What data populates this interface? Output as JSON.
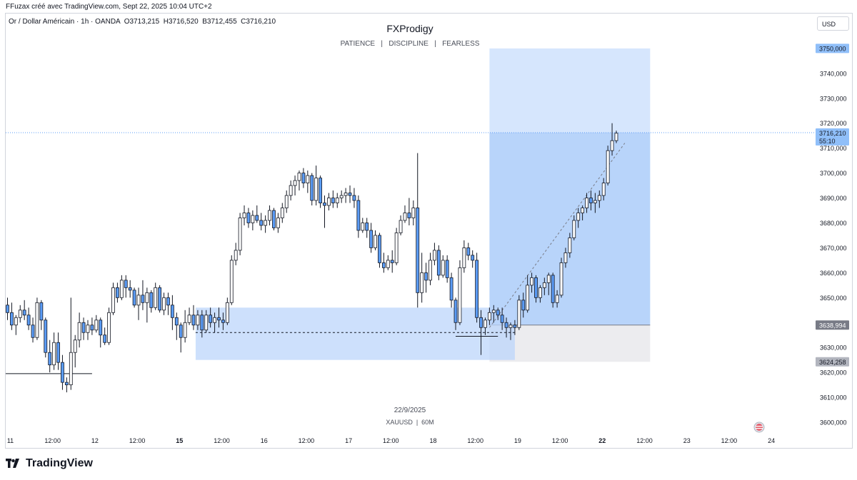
{
  "header": {
    "credit": "FFuzax créé avec TradingView.com, Sept 22, 2025 10:04 UTC+2",
    "symbol_info": "Or / Dollar Américain · 1h · OANDA",
    "ohlc": "O3713,215  H3716,520  B3712,455  C3716,210",
    "currency": "USD"
  },
  "footer": {
    "brand": "TradingView",
    "logo_icon": "tradingview-logo-icon"
  },
  "chart_data": {
    "type": "candlestick",
    "title": "FXProdigy",
    "subtitle": "PATIENCE   |   DISCIPLINE   |   FEARLESS",
    "date_caption": "22/9/2025",
    "instrument_caption": "XAUUSD  |  60M",
    "ylim": [
      3596,
      3764
    ],
    "y_ticks": [
      "3600,000",
      "3610,000",
      "3620,000",
      "3630,000",
      "3640,000",
      "3650,000",
      "3660,000",
      "3670,000",
      "3680,000",
      "3690,000",
      "3700,000",
      "3710,000",
      "3720,000",
      "3730,000",
      "3740,000"
    ],
    "x_ticks": [
      {
        "label": "11",
        "i": 0,
        "bold": false
      },
      {
        "label": "12:00",
        "i": 10,
        "bold": false
      },
      {
        "label": "12",
        "i": 20,
        "bold": false
      },
      {
        "label": "12:00",
        "i": 30,
        "bold": false
      },
      {
        "label": "15",
        "i": 40,
        "bold": true
      },
      {
        "label": "12:00",
        "i": 50,
        "bold": false
      },
      {
        "label": "16",
        "i": 60,
        "bold": false
      },
      {
        "label": "12:00",
        "i": 70,
        "bold": false
      },
      {
        "label": "17",
        "i": 80,
        "bold": false
      },
      {
        "label": "12:00",
        "i": 90,
        "bold": false
      },
      {
        "label": "18",
        "i": 100,
        "bold": false
      },
      {
        "label": "12:00",
        "i": 110,
        "bold": false
      },
      {
        "label": "19",
        "i": 120,
        "bold": false
      },
      {
        "label": "12:00",
        "i": 130,
        "bold": false
      },
      {
        "label": "22",
        "i": 140,
        "bold": true
      },
      {
        "label": "12:00",
        "i": 150,
        "bold": false
      },
      {
        "label": "23",
        "i": 160,
        "bold": false
      },
      {
        "label": "12:00",
        "i": 170,
        "bold": false
      },
      {
        "label": "24",
        "i": 180,
        "bold": false
      }
    ],
    "price_labels": [
      {
        "text": "3750,000",
        "value": 3750,
        "bg": "#90bff9",
        "color": "#131722"
      },
      {
        "text": "3716,210",
        "text2": "55:10",
        "value": 3716.21,
        "bg": "#90bff9",
        "color": "#131722"
      },
      {
        "text": "3638,994",
        "value": 3638.994,
        "bg": "#787b86",
        "color": "#ffffff"
      },
      {
        "text": "3624,258",
        "value": 3624.258,
        "bg": "#b2b5be",
        "color": "#131722"
      }
    ],
    "current_price": 3716.21,
    "demand_zone": {
      "from_i": 44.5,
      "to_i": 120,
      "low": 3625,
      "high": 3646
    },
    "demand_midline": 3636,
    "long_position": {
      "from_i": 114,
      "to_i": 152,
      "entry": 3638.994,
      "target": 3750,
      "stop": 3624.258
    },
    "support_line": {
      "from_i": 0,
      "to_i": 20,
      "value": 3619.5
    },
    "small_line": {
      "from_i": 106,
      "to_i": 116,
      "value": 3634.5
    },
    "trend_line": {
      "from": [
        114,
        3638
      ],
      "to": [
        146,
        3712
      ]
    },
    "candle_colors": {
      "up": "#ffffff",
      "down": "#5b9cf6",
      "wick": "#131722"
    },
    "candles": [
      [
        3647,
        3650,
        3641,
        3644
      ],
      [
        3644,
        3648,
        3637,
        3639
      ],
      [
        3639,
        3643,
        3635,
        3642
      ],
      [
        3642,
        3647,
        3640,
        3645
      ],
      [
        3645,
        3649,
        3641,
        3643
      ],
      [
        3643,
        3646,
        3637,
        3639
      ],
      [
        3639,
        3642,
        3632,
        3634
      ],
      [
        3634,
        3650,
        3633,
        3648
      ],
      [
        3648,
        3649,
        3637,
        3641
      ],
      [
        3641,
        3642,
        3626,
        3628
      ],
      [
        3628,
        3633,
        3620,
        3623
      ],
      [
        3623,
        3636,
        3621,
        3632
      ],
      [
        3632,
        3636,
        3621,
        3624
      ],
      [
        3624,
        3627,
        3613,
        3616
      ],
      [
        3616,
        3618,
        3612,
        3615
      ],
      [
        3615,
        3650,
        3613,
        3628
      ],
      [
        3628,
        3635,
        3622,
        3633
      ],
      [
        3633,
        3644,
        3630,
        3640
      ],
      [
        3640,
        3642,
        3633,
        3636
      ],
      [
        3636,
        3641,
        3633,
        3639
      ],
      [
        3639,
        3642,
        3635,
        3637
      ],
      [
        3637,
        3643,
        3636,
        3641
      ],
      [
        3641,
        3642,
        3630,
        3635
      ],
      [
        3635,
        3638,
        3631,
        3632
      ],
      [
        3632,
        3646,
        3631,
        3644
      ],
      [
        3644,
        3656,
        3643,
        3654
      ],
      [
        3654,
        3656,
        3648,
        3650
      ],
      [
        3650,
        3659,
        3649,
        3657
      ],
      [
        3657,
        3659,
        3650,
        3654
      ],
      [
        3654,
        3657,
        3650,
        3653
      ],
      [
        3653,
        3654,
        3646,
        3647
      ],
      [
        3647,
        3654,
        3641,
        3651
      ],
      [
        3651,
        3657,
        3645,
        3648
      ],
      [
        3648,
        3654,
        3640,
        3652
      ],
      [
        3652,
        3653,
        3644,
        3646
      ],
      [
        3646,
        3656,
        3645,
        3654
      ],
      [
        3654,
        3655,
        3644,
        3645
      ],
      [
        3645,
        3652,
        3643,
        3650
      ],
      [
        3650,
        3652,
        3643,
        3647
      ],
      [
        3647,
        3651,
        3637,
        3642
      ],
      [
        3642,
        3644,
        3633,
        3639
      ],
      [
        3639,
        3640,
        3628,
        3634
      ],
      [
        3634,
        3645,
        3632,
        3640
      ],
      [
        3640,
        3646,
        3639,
        3643
      ],
      [
        3643,
        3647,
        3637,
        3639
      ],
      [
        3639,
        3645,
        3637,
        3643
      ],
      [
        3643,
        3645,
        3634,
        3637
      ],
      [
        3637,
        3645,
        3636,
        3643
      ],
      [
        3643,
        3646,
        3638,
        3640
      ],
      [
        3640,
        3644,
        3636,
        3642
      ],
      [
        3642,
        3646,
        3638,
        3641
      ],
      [
        3641,
        3644,
        3637,
        3640
      ],
      [
        3640,
        3650,
        3639,
        3648
      ],
      [
        3648,
        3667,
        3647,
        3665
      ],
      [
        3665,
        3672,
        3663,
        3669
      ],
      [
        3669,
        3684,
        3667,
        3682
      ],
      [
        3682,
        3687,
        3679,
        3684
      ],
      [
        3684,
        3686,
        3678,
        3680
      ],
      [
        3680,
        3685,
        3677,
        3683
      ],
      [
        3683,
        3687,
        3680,
        3681
      ],
      [
        3681,
        3684,
        3677,
        3679
      ],
      [
        3679,
        3683,
        3676,
        3681
      ],
      [
        3681,
        3687,
        3679,
        3685
      ],
      [
        3685,
        3686,
        3677,
        3678
      ],
      [
        3678,
        3684,
        3676,
        3682
      ],
      [
        3682,
        3688,
        3680,
        3686
      ],
      [
        3686,
        3693,
        3684,
        3691
      ],
      [
        3691,
        3697,
        3689,
        3695
      ],
      [
        3695,
        3699,
        3691,
        3697
      ],
      [
        3697,
        3701,
        3693,
        3700
      ],
      [
        3700,
        3702,
        3694,
        3696
      ],
      [
        3696,
        3701,
        3692,
        3699
      ],
      [
        3699,
        3700,
        3687,
        3689
      ],
      [
        3689,
        3703,
        3687,
        3698
      ],
      [
        3698,
        3699,
        3686,
        3688
      ],
      [
        3688,
        3691,
        3678,
        3687
      ],
      [
        3687,
        3692,
        3685,
        3690
      ],
      [
        3690,
        3693,
        3686,
        3688
      ],
      [
        3688,
        3692,
        3686,
        3690
      ],
      [
        3690,
        3693,
        3688,
        3691
      ],
      [
        3691,
        3694,
        3688,
        3692
      ],
      [
        3692,
        3695,
        3688,
        3691
      ],
      [
        3691,
        3694,
        3686,
        3689
      ],
      [
        3689,
        3691,
        3674,
        3677
      ],
      [
        3677,
        3682,
        3676,
        3680
      ],
      [
        3680,
        3682,
        3674,
        3677
      ],
      [
        3677,
        3680,
        3668,
        3670
      ],
      [
        3670,
        3677,
        3669,
        3675
      ],
      [
        3675,
        3676,
        3662,
        3664
      ],
      [
        3664,
        3668,
        3660,
        3662
      ],
      [
        3662,
        3667,
        3661,
        3665
      ],
      [
        3665,
        3669,
        3660,
        3664
      ],
      [
        3664,
        3678,
        3663,
        3676
      ],
      [
        3676,
        3683,
        3675,
        3681
      ],
      [
        3681,
        3687,
        3680,
        3684
      ],
      [
        3684,
        3690,
        3679,
        3682
      ],
      [
        3682,
        3689,
        3679,
        3686
      ],
      [
        3686,
        3708,
        3646,
        3652
      ],
      [
        3652,
        3668,
        3648,
        3660
      ],
      [
        3660,
        3664,
        3652,
        3657
      ],
      [
        3657,
        3668,
        3655,
        3665
      ],
      [
        3665,
        3672,
        3663,
        3669
      ],
      [
        3669,
        3671,
        3657,
        3659
      ],
      [
        3659,
        3667,
        3658,
        3665
      ],
      [
        3665,
        3667,
        3656,
        3658
      ],
      [
        3658,
        3660,
        3646,
        3649
      ],
      [
        3649,
        3650,
        3637,
        3640
      ],
      [
        3640,
        3665,
        3639,
        3662
      ],
      [
        3662,
        3673,
        3660,
        3670
      ],
      [
        3670,
        3672,
        3665,
        3667
      ],
      [
        3667,
        3669,
        3662,
        3665
      ],
      [
        3665,
        3668,
        3640,
        3642
      ],
      [
        3642,
        3645,
        3627,
        3638
      ],
      [
        3638,
        3642,
        3635,
        3641
      ],
      [
        3641,
        3646,
        3639,
        3644
      ],
      [
        3644,
        3647,
        3640,
        3645
      ],
      [
        3645,
        3646,
        3641,
        3643
      ],
      [
        3643,
        3646,
        3637,
        3640
      ],
      [
        3640,
        3642,
        3634,
        3638
      ],
      [
        3638,
        3640,
        3633,
        3639
      ],
      [
        3639,
        3641,
        3635,
        3638
      ],
      [
        3638,
        3651,
        3637,
        3649
      ],
      [
        3649,
        3652,
        3642,
        3645
      ],
      [
        3645,
        3659,
        3644,
        3655
      ],
      [
        3655,
        3660,
        3652,
        3658
      ],
      [
        3658,
        3659,
        3648,
        3650
      ],
      [
        3650,
        3655,
        3648,
        3654
      ],
      [
        3654,
        3658,
        3651,
        3656
      ],
      [
        3656,
        3660,
        3651,
        3659
      ],
      [
        3659,
        3660,
        3646,
        3648
      ],
      [
        3648,
        3653,
        3646,
        3651
      ],
      [
        3651,
        3666,
        3650,
        3664
      ],
      [
        3664,
        3670,
        3662,
        3668
      ],
      [
        3668,
        3676,
        3666,
        3674
      ],
      [
        3674,
        3683,
        3673,
        3681
      ],
      [
        3681,
        3686,
        3678,
        3684
      ],
      [
        3684,
        3687,
        3681,
        3686
      ],
      [
        3686,
        3692,
        3684,
        3690
      ],
      [
        3690,
        3693,
        3685,
        3688
      ],
      [
        3688,
        3692,
        3684,
        3689
      ],
      [
        3689,
        3693,
        3686,
        3691
      ],
      [
        3691,
        3698,
        3689,
        3696
      ],
      [
        3696,
        3711,
        3695,
        3709
      ],
      [
        3709,
        3720,
        3707,
        3713
      ],
      [
        3713,
        3717,
        3712,
        3716
      ]
    ]
  }
}
